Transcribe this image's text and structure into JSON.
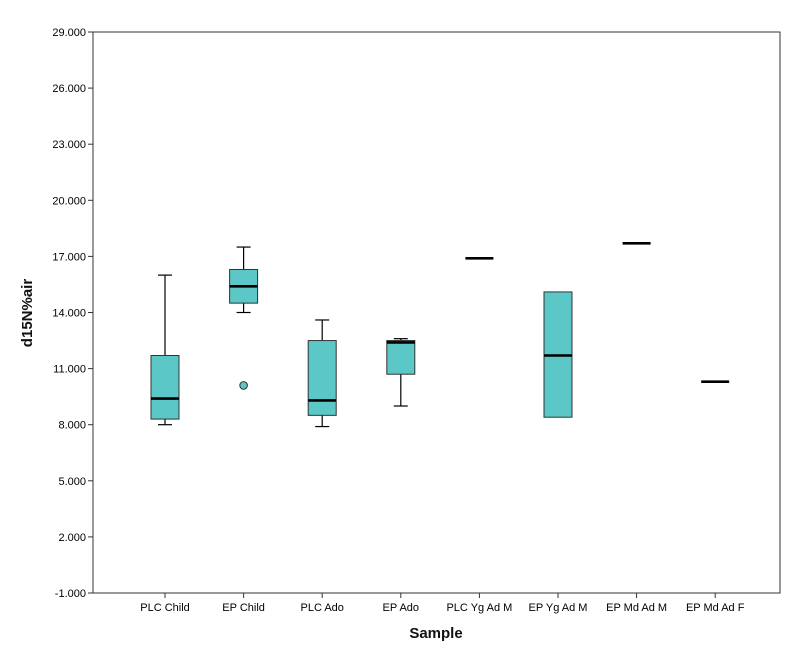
{
  "chart_data": {
    "type": "box",
    "xlabel": "Sample",
    "ylabel": "d15N%air",
    "ylim": [
      -1.0,
      29.0
    ],
    "yticks": [
      -1.0,
      2.0,
      5.0,
      8.0,
      11.0,
      14.0,
      17.0,
      20.0,
      23.0,
      26.0,
      29.0
    ],
    "ytick_labels": [
      "-1.000",
      "2.000",
      "5.000",
      "8.000",
      "11.000",
      "14.000",
      "17.000",
      "20.000",
      "23.000",
      "26.000",
      "29.000"
    ],
    "grid": false,
    "box_color": "#5bc7c6",
    "categories": [
      "PLC Child",
      "EP Child",
      "PLC Ado",
      "EP Ado",
      "PLC Yg Ad M",
      "EP Yg Ad M",
      "EP Md Ad M",
      "EP Md Ad F"
    ],
    "boxes": [
      {
        "min": 8.0,
        "q1": 8.3,
        "median": 9.4,
        "q3": 11.7,
        "max": 16.0,
        "outliers": []
      },
      {
        "min": 14.0,
        "q1": 14.5,
        "median": 15.4,
        "q3": 16.3,
        "max": 17.5,
        "outliers": [
          10.1
        ]
      },
      {
        "min": 7.9,
        "q1": 8.5,
        "median": 9.3,
        "q3": 12.5,
        "max": 13.6,
        "outliers": []
      },
      {
        "min": 9.0,
        "q1": 10.7,
        "median": 12.4,
        "q3": 12.5,
        "max": 12.6,
        "outliers": []
      },
      {
        "min": 16.9,
        "q1": 16.9,
        "median": 16.9,
        "q3": 16.9,
        "max": 16.9,
        "outliers": []
      },
      {
        "min": 8.4,
        "q1": 8.4,
        "median": 11.7,
        "q3": 15.1,
        "max": 15.1,
        "outliers": []
      },
      {
        "min": 17.7,
        "q1": 17.7,
        "median": 17.7,
        "q3": 17.7,
        "max": 17.7,
        "outliers": []
      },
      {
        "min": 10.3,
        "q1": 10.3,
        "median": 10.3,
        "q3": 10.3,
        "max": 10.3,
        "outliers": []
      }
    ]
  }
}
